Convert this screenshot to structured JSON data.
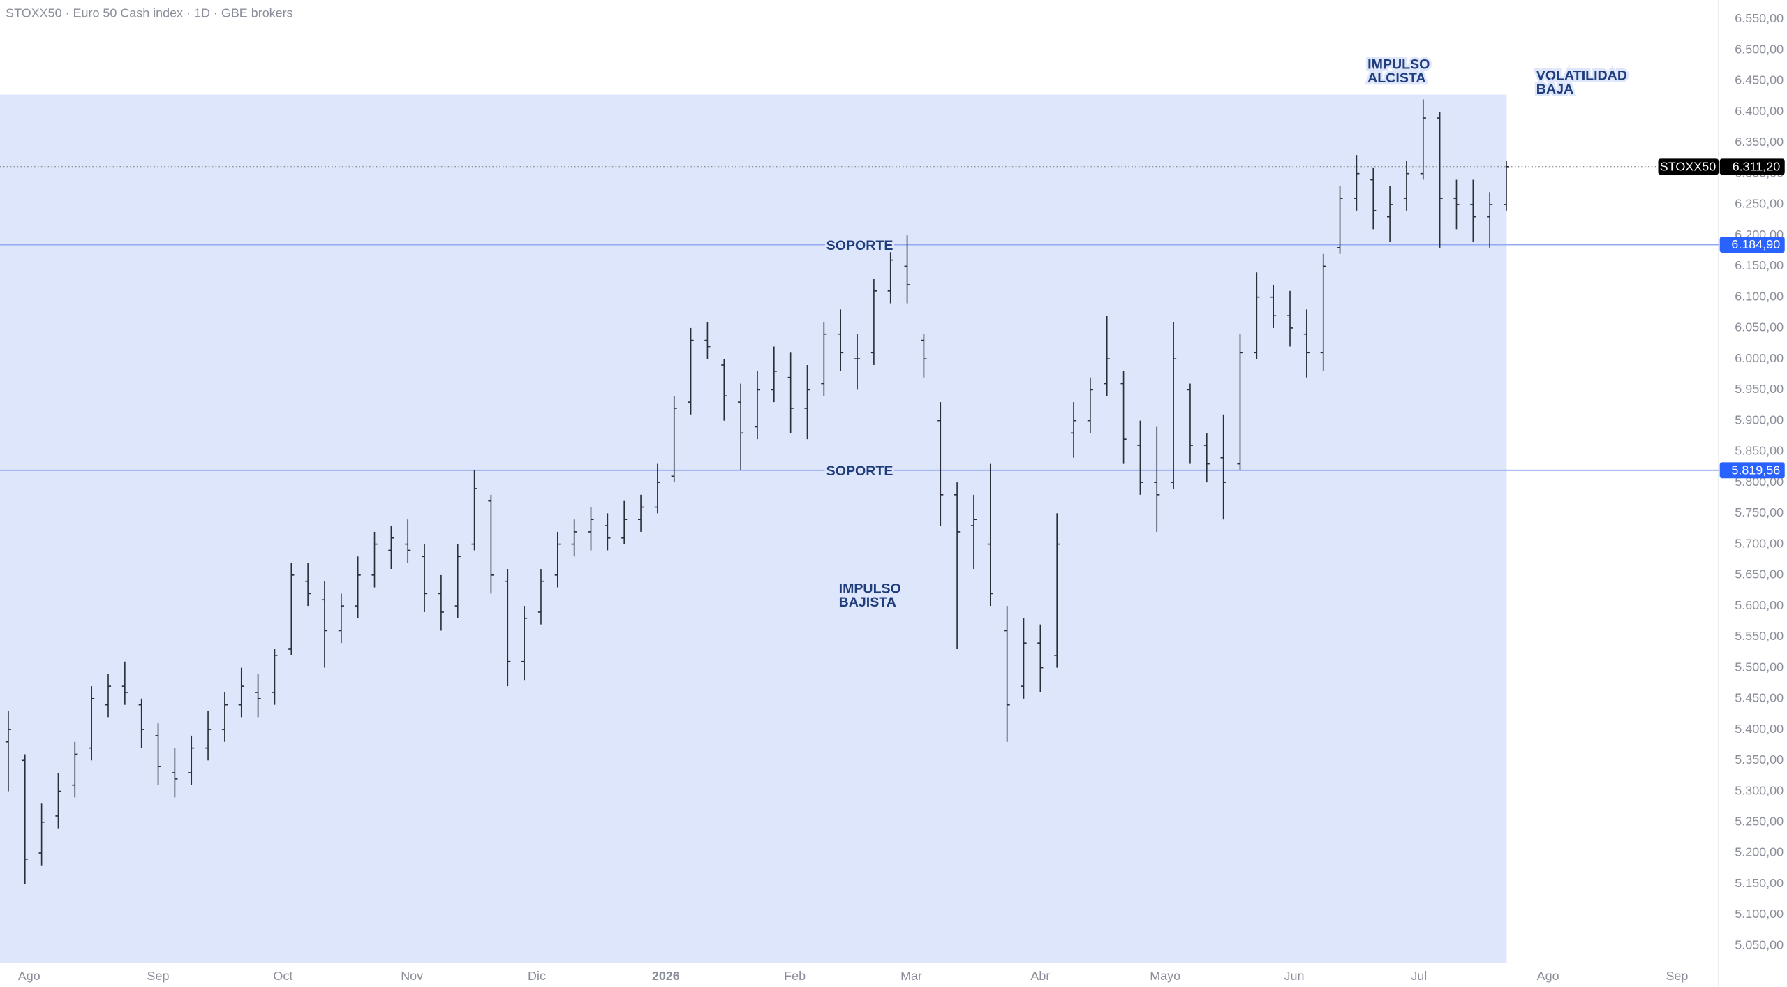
{
  "chart_data": {
    "type": "ohlc",
    "title": "STOXX50 · Euro 50 Cash index · 1D · GBE brokers",
    "x": [
      -5,
      -1,
      3,
      7,
      11,
      15,
      19,
      23,
      27,
      31,
      35,
      39,
      43,
      47,
      51,
      55,
      59,
      63,
      67,
      71,
      75,
      79,
      83,
      87,
      91,
      95,
      99,
      103,
      107,
      111,
      115,
      119,
      123,
      127,
      131,
      135,
      139,
      143,
      147,
      151,
      155,
      159,
      163,
      167,
      171,
      175,
      179,
      183,
      187,
      191,
      195,
      199,
      203,
      207,
      211,
      215,
      219,
      223,
      227,
      231,
      235,
      239,
      243,
      247,
      251,
      255,
      259,
      263,
      267,
      271,
      275,
      279,
      283,
      287,
      291,
      295,
      299,
      303,
      307,
      311,
      315,
      319,
      323,
      327,
      331,
      335,
      339,
      343,
      347,
      351,
      355
    ],
    "open": [
      5380,
      5350,
      5200,
      5260,
      5310,
      5370,
      5440,
      5470,
      5440,
      5390,
      5330,
      5330,
      5370,
      5400,
      5440,
      5460,
      5460,
      5530,
      5640,
      5610,
      5560,
      5600,
      5650,
      5690,
      5700,
      5680,
      5620,
      5600,
      5700,
      5770,
      5640,
      5510,
      5590,
      5650,
      5700,
      5720,
      5730,
      5710,
      5740,
      5760,
      5810,
      5930,
      6030,
      5990,
      5930,
      5890,
      5950,
      5970,
      5920,
      5960,
      6040,
      6000,
      6010,
      6110,
      6150,
      6030,
      5900,
      5780,
      5730,
      5700,
      5560,
      5470,
      5540,
      5520,
      5880,
      5900,
      5960,
      5960,
      5860,
      5800,
      5800,
      5950,
      5860,
      5840,
      5830,
      6010,
      6100,
      6070,
      6040,
      6010,
      6180,
      6260,
      6290,
      6230,
      6260,
      6300,
      6390,
      6260,
      6250,
      6230,
      6250
    ],
    "high": [
      5430,
      5360,
      5280,
      5330,
      5380,
      5470,
      5490,
      5510,
      5450,
      5410,
      5370,
      5390,
      5430,
      5460,
      5500,
      5490,
      5530,
      5670,
      5670,
      5640,
      5620,
      5680,
      5720,
      5730,
      5740,
      5700,
      5650,
      5700,
      5820,
      5780,
      5660,
      5600,
      5660,
      5720,
      5740,
      5760,
      5750,
      5770,
      5780,
      5830,
      5940,
      6050,
      6060,
      6000,
      5960,
      5980,
      6020,
      6010,
      5990,
      6060,
      6080,
      6040,
      6130,
      6180,
      6200,
      6040,
      5930,
      5800,
      5780,
      5830,
      5600,
      5580,
      5570,
      5750,
      5930,
      5970,
      6070,
      5980,
      5900,
      5890,
      6060,
      5960,
      5880,
      5910,
      6040,
      6140,
      6120,
      6110,
      6080,
      6170,
      6280,
      6330,
      6310,
      6280,
      6320,
      6420,
      6400,
      6290,
      6290,
      6270,
      6320
    ],
    "low": [
      5300,
      5150,
      5180,
      5240,
      5290,
      5350,
      5420,
      5440,
      5370,
      5310,
      5290,
      5310,
      5350,
      5380,
      5420,
      5420,
      5440,
      5520,
      5600,
      5500,
      5540,
      5580,
      5630,
      5660,
      5670,
      5590,
      5560,
      5580,
      5690,
      5620,
      5470,
      5480,
      5570,
      5630,
      5680,
      5690,
      5690,
      5700,
      5720,
      5750,
      5800,
      5910,
      6000,
      5900,
      5820,
      5870,
      5930,
      5880,
      5870,
      5940,
      5980,
      5950,
      5990,
      6090,
      6090,
      5970,
      5730,
      5530,
      5660,
      5600,
      5380,
      5450,
      5460,
      5500,
      5840,
      5880,
      5940,
      5830,
      5780,
      5720,
      5790,
      5830,
      5800,
      5740,
      5820,
      6000,
      6050,
      6020,
      5970,
      5980,
      6170,
      6240,
      6210,
      6190,
      6240,
      6290,
      6180,
      6210,
      6190,
      6180,
      6240
    ],
    "close": [
      5400,
      5190,
      5250,
      5300,
      5360,
      5450,
      5470,
      5460,
      5400,
      5340,
      5320,
      5370,
      5400,
      5440,
      5470,
      5450,
      5520,
      5650,
      5620,
      5560,
      5600,
      5650,
      5700,
      5710,
      5690,
      5620,
      5590,
      5680,
      5790,
      5650,
      5510,
      5580,
      5640,
      5700,
      5720,
      5740,
      5710,
      5740,
      5760,
      5800,
      5920,
      6030,
      6020,
      5940,
      5880,
      5950,
      5980,
      5920,
      5950,
      6040,
      6010,
      6000,
      6110,
      6160,
      6120,
      6000,
      5780,
      5720,
      5740,
      5620,
      5440,
      5540,
      5500,
      5700,
      5900,
      5950,
      6000,
      5870,
      5800,
      5780,
      6000,
      5860,
      5830,
      5800,
      6010,
      6100,
      6070,
      6050,
      6010,
      6150,
      6260,
      6300,
      6240,
      6250,
      6300,
      6390,
      6260,
      6250,
      6230,
      6250,
      6311.2
    ],
    "color": "#2a2e39",
    "xlim": [
      -7,
      406
    ],
    "ylim": [
      5020,
      6581
    ],
    "xticks": [
      {
        "value": 0,
        "label": "Ago"
      },
      {
        "value": 31,
        "label": "Sep"
      },
      {
        "value": 61,
        "label": "Oct"
      },
      {
        "value": 92,
        "label": "Nov"
      },
      {
        "value": 122,
        "label": "Dic"
      },
      {
        "value": 153,
        "label": "2026"
      },
      {
        "value": 184,
        "label": "Feb"
      },
      {
        "value": 212,
        "label": "Mar"
      },
      {
        "value": 243,
        "label": "Abr"
      },
      {
        "value": 273,
        "label": "Mayo"
      },
      {
        "value": 304,
        "label": "Jun"
      },
      {
        "value": 334,
        "label": "Jul"
      },
      {
        "value": 365,
        "label": "Ago"
      },
      {
        "value": 396,
        "label": "Sep"
      }
    ],
    "yticks": [
      {
        "value": 5050,
        "label": "5.050,00"
      },
      {
        "value": 5100,
        "label": "5.100,00"
      },
      {
        "value": 5150,
        "label": "5.150,00"
      },
      {
        "value": 5200,
        "label": "5.200,00"
      },
      {
        "value": 5250,
        "label": "5.250,00"
      },
      {
        "value": 5300,
        "label": "5.300,00"
      },
      {
        "value": 5350,
        "label": "5.350,00"
      },
      {
        "value": 5400,
        "label": "5.400,00"
      },
      {
        "value": 5450,
        "label": "5.450,00"
      },
      {
        "value": 5500,
        "label": "5.500,00"
      },
      {
        "value": 5550,
        "label": "5.550,00"
      },
      {
        "value": 5600,
        "label": "5.600,00"
      },
      {
        "value": 5650,
        "label": "5.650,00"
      },
      {
        "value": 5700,
        "label": "5.700,00"
      },
      {
        "value": 5750,
        "label": "5.750,00"
      },
      {
        "value": 5800,
        "label": "5.800,00"
      },
      {
        "value": 5850,
        "label": "5.850,00"
      },
      {
        "value": 5900,
        "label": "5.900,00"
      },
      {
        "value": 5950,
        "label": "5.950,00"
      },
      {
        "value": 6000,
        "label": "6.000,00"
      },
      {
        "value": 6050,
        "label": "6.050,00"
      },
      {
        "value": 6100,
        "label": "6.100,00"
      },
      {
        "value": 6150,
        "label": "6.150,00"
      },
      {
        "value": 6200,
        "label": "6.200,00"
      },
      {
        "value": 6250,
        "label": "6.250,00"
      },
      {
        "value": 6300,
        "label": "6.300,00"
      },
      {
        "value": 6350,
        "label": "6.350,00"
      },
      {
        "value": 6400,
        "label": "6.400,00"
      },
      {
        "value": 6450,
        "label": "6.450,00"
      },
      {
        "value": 6500,
        "label": "6.500,00"
      },
      {
        "value": 6550,
        "label": "6.550,00"
      }
    ],
    "last_price": {
      "symbol": "STOXX50",
      "value": 6311.2,
      "label": "6.311,20"
    },
    "support_levels": [
      {
        "value": 6184.9,
        "label": "6.184,90"
      },
      {
        "value": 5819.56,
        "label": "5.819,56"
      }
    ],
    "annotations": [
      {
        "lines": [
          "SOPORTE"
        ]
      },
      {
        "lines": [
          "SOPORTE"
        ]
      },
      {
        "lines": [
          "IMPULSO",
          "ALCISTA"
        ]
      },
      {
        "lines": [
          "VOLATILIDAD",
          "BAJA"
        ]
      },
      {
        "lines": [
          "IMPULSO",
          "BAJISTA"
        ]
      }
    ]
  }
}
